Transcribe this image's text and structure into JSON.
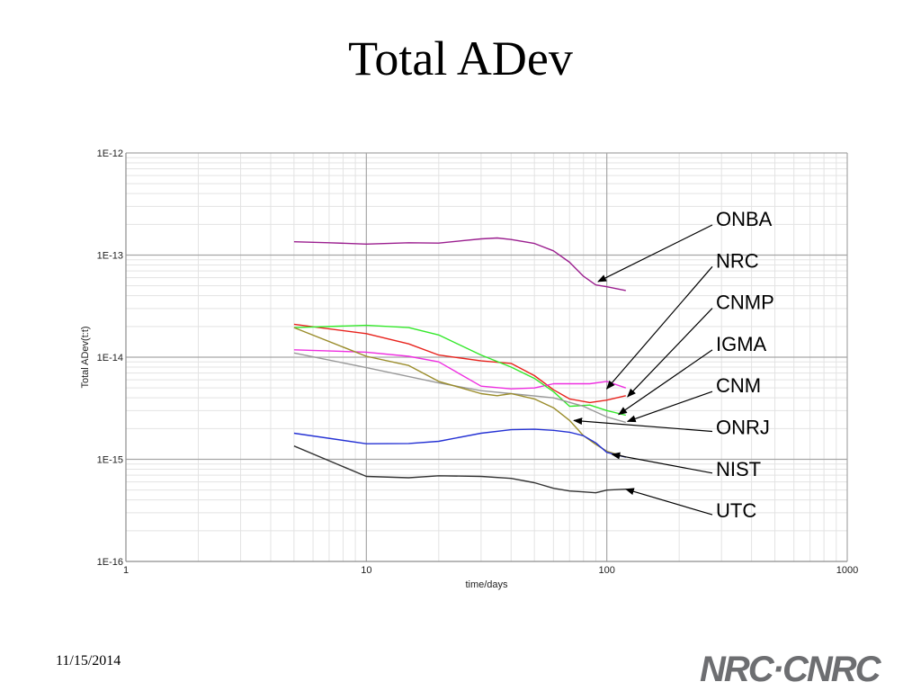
{
  "slide": {
    "title": "Total ADev",
    "date": "11/15/2014",
    "logo_text": "NRC·CNRC"
  },
  "chart_data": {
    "type": "line",
    "xlabel": "time/days",
    "ylabel": "Total ADev(t:t)",
    "x_scale": "log",
    "y_scale": "log",
    "xlim": [
      1,
      1000
    ],
    "ylim": [
      1e-16,
      1e-12
    ],
    "x_ticks": [
      "1",
      "10",
      "100",
      "1000"
    ],
    "y_ticks": [
      "1E-16",
      "1E-15",
      "1E-14",
      "1E-13",
      "1E-12"
    ],
    "grid": true,
    "series": [
      {
        "name": "ONBA",
        "color": "#9b1f8f",
        "x": [
          5,
          7,
          10,
          15,
          20,
          25,
          30,
          35,
          40,
          50,
          60,
          70,
          80,
          90,
          100,
          120
        ],
        "y": [
          1.35e-13,
          1.32e-13,
          1.28e-13,
          1.32e-13,
          1.31e-13,
          1.38e-13,
          1.44e-13,
          1.47e-13,
          1.42e-13,
          1.3e-13,
          1.1e-13,
          8.5e-14,
          6.2e-14,
          5.1e-14,
          4.9e-14,
          4.5e-14
        ]
      },
      {
        "name": "NRC",
        "color": "#e8221c",
        "x": [
          5,
          10,
          15,
          20,
          30,
          40,
          50,
          60,
          70,
          85,
          100,
          120
        ],
        "y": [
          2.1e-14,
          1.7e-14,
          1.35e-14,
          1.05e-14,
          9.2e-15,
          8.7e-15,
          6.6e-15,
          4.8e-15,
          3.9e-15,
          3.6e-15,
          3.8e-15,
          4.2e-15
        ]
      },
      {
        "name": "CNMP",
        "color": "#ee2ee0",
        "x": [
          5,
          10,
          15,
          20,
          30,
          40,
          50,
          60,
          70,
          85,
          100,
          120
        ],
        "y": [
          1.18e-14,
          1.12e-14,
          1.02e-14,
          9e-15,
          5.2e-15,
          4.9e-15,
          5e-15,
          5.5e-15,
          5.5e-15,
          5.5e-15,
          5.8e-15,
          5e-15
        ]
      },
      {
        "name": "IGMA",
        "color": "#33e82a",
        "x": [
          5,
          10,
          15,
          20,
          30,
          40,
          50,
          60,
          70,
          85,
          100,
          120
        ],
        "y": [
          1.95e-14,
          2.05e-14,
          1.95e-14,
          1.65e-14,
          1.05e-14,
          8e-15,
          6.2e-15,
          4.6e-15,
          3.3e-15,
          3.4e-15,
          3e-15,
          2.7e-15
        ]
      },
      {
        "name": "CNM",
        "color": "#999999",
        "x": [
          5,
          10,
          20,
          30,
          40,
          60,
          80,
          100,
          120
        ],
        "y": [
          1.1e-14,
          7.9e-15,
          5.6e-15,
          4.7e-15,
          4.4e-15,
          4e-15,
          3.3e-15,
          2.6e-15,
          2.3e-15
        ]
      },
      {
        "name": "ONRJ",
        "color": "#9a8c2a",
        "x": [
          5,
          10,
          15,
          20,
          30,
          35,
          40,
          50,
          60,
          70,
          80,
          90,
          100,
          120
        ],
        "y": [
          1.95e-14,
          1.02e-14,
          8.3e-15,
          5.8e-15,
          4.4e-15,
          4.2e-15,
          4.4e-15,
          3.9e-15,
          3.2e-15,
          2.4e-15,
          1.7e-15,
          1.4e-15,
          1.2e-15,
          1.05e-15
        ]
      },
      {
        "name": "NIST",
        "color": "#2532d4",
        "x": [
          5,
          10,
          15,
          20,
          30,
          40,
          50,
          60,
          70,
          80,
          90,
          100,
          120
        ],
        "y": [
          1.8e-15,
          1.42e-15,
          1.43e-15,
          1.5e-15,
          1.8e-15,
          1.95e-15,
          1.97e-15,
          1.92e-15,
          1.84e-15,
          1.7e-15,
          1.45e-15,
          1.17e-15,
          1.05e-15
        ]
      },
      {
        "name": "UTC",
        "color": "#333333",
        "x": [
          5,
          10,
          15,
          20,
          30,
          40,
          50,
          60,
          70,
          80,
          90,
          100,
          120
        ],
        "y": [
          1.35e-15,
          6.8e-16,
          6.6e-16,
          6.9e-16,
          6.8e-16,
          6.5e-16,
          5.9e-16,
          5.2e-16,
          4.9e-16,
          4.8e-16,
          4.7e-16,
          5e-16,
          5.1e-16
        ]
      }
    ],
    "annotations": [
      {
        "label": "ONBA",
        "points_to": {
          "x": 92,
          "y": 5.5e-14
        }
      },
      {
        "label": "NRC",
        "points_to": {
          "x": 100,
          "y": 4.9e-15
        }
      },
      {
        "label": "CNMP",
        "points_to": {
          "x": 122,
          "y": 4.1e-15
        }
      },
      {
        "label": "IGMA",
        "points_to": {
          "x": 112,
          "y": 2.75e-15
        }
      },
      {
        "label": "CNM",
        "points_to": {
          "x": 122,
          "y": 2.35e-15
        }
      },
      {
        "label": "ONRJ",
        "points_to": {
          "x": 73,
          "y": 2.4e-15
        }
      },
      {
        "label": "NIST",
        "points_to": {
          "x": 105,
          "y": 1.12e-15
        }
      },
      {
        "label": "UTC",
        "points_to": {
          "x": 120,
          "y": 5.1e-16
        }
      }
    ]
  }
}
